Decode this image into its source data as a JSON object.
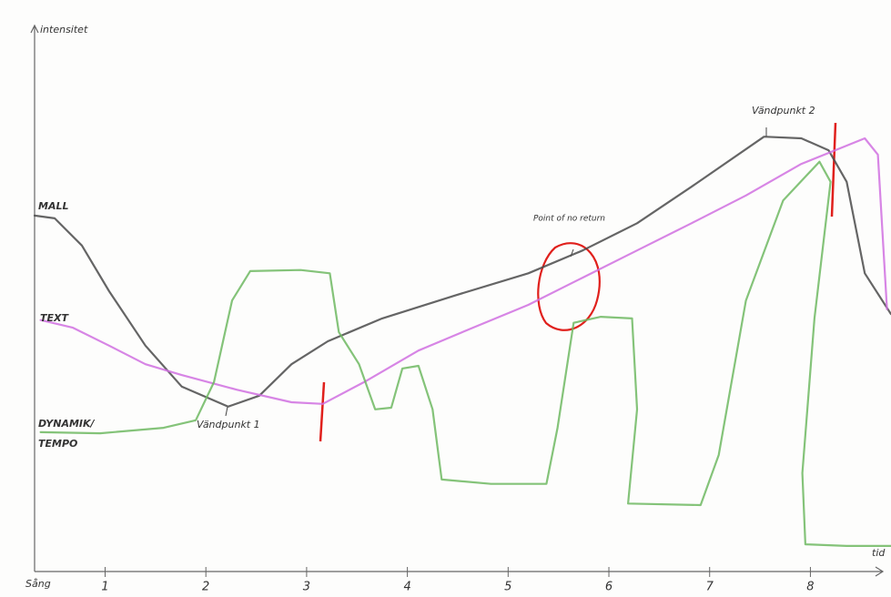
{
  "chart_data": {
    "type": "line",
    "y_axis_label": "intensitet",
    "x_axis_label": "tid",
    "x_start_label": "Sång",
    "xlim": [
      0.3,
      8.8
    ],
    "ylim": [
      0,
      100
    ],
    "xticks": [
      1,
      2,
      3,
      4,
      5,
      6,
      7,
      8
    ],
    "annotations": [
      "Vändpunkt 1",
      "Vändpunkt 2",
      "Point of no return"
    ],
    "series": [
      {
        "name": "MALL",
        "color": "#4a4a4a",
        "x": [
          0.3,
          0.5,
          0.77,
          1.04,
          1.4,
          1.76,
          2.22,
          2.53,
          2.85,
          3.21,
          3.75,
          4.47,
          5.2,
          5.74,
          6.28,
          6.82,
          7.54,
          7.91,
          8.18,
          8.36,
          8.54,
          8.8
        ],
        "values": [
          65.4,
          64.9,
          59.9,
          51.5,
          41.5,
          34,
          30.3,
          32.3,
          38.1,
          42.3,
          46.5,
          50.7,
          54.8,
          59,
          64,
          70.7,
          79.9,
          79.6,
          77.4,
          71.6,
          54.8,
          47.3
        ]
      },
      {
        "name": "TEXT",
        "color": "#d070e0",
        "x": [
          0.36,
          0.68,
          1.04,
          1.4,
          1.76,
          2.31,
          2.85,
          3.16,
          3.57,
          4.11,
          4.65,
          5.2,
          5.74,
          6.28,
          6.82,
          7.36,
          7.91,
          8.54,
          8.67,
          8.76
        ],
        "values": [
          46.2,
          44.8,
          41.5,
          38.1,
          36.1,
          33.4,
          31.1,
          30.8,
          34.8,
          40.6,
          44.8,
          49,
          54,
          59,
          64,
          69.1,
          74.9,
          79.6,
          76.6,
          48.2
        ]
      },
      {
        "name": "DYNAMIK/TEMPO",
        "color": "#6fb862",
        "x": [
          0.36,
          0.95,
          1.58,
          1.9,
          2.08,
          2.26,
          2.44,
          2.94,
          3.23,
          3.32,
          3.52,
          3.68,
          3.84,
          3.95,
          4.11,
          4.25,
          4.34,
          4.83,
          5.38,
          5.49,
          5.65,
          5.92,
          6.23,
          6.28,
          6.19,
          6.91,
          7.09,
          7.36,
          7.73,
          8.09,
          8.2,
          8.04,
          7.92,
          7.95,
          8.36,
          8.8
        ],
        "values": [
          25.6,
          25.4,
          26.4,
          27.8,
          34.8,
          49.8,
          55.2,
          55.4,
          54.8,
          44,
          38.1,
          29.8,
          30.1,
          37.3,
          37.8,
          29.8,
          16.9,
          16.1,
          16.1,
          26.4,
          45.7,
          46.8,
          46.5,
          29.8,
          12.5,
          12.2,
          21.4,
          49.8,
          68.2,
          75.3,
          71.6,
          46.5,
          18.1,
          5,
          4.7,
          4.7
        ]
      }
    ]
  }
}
